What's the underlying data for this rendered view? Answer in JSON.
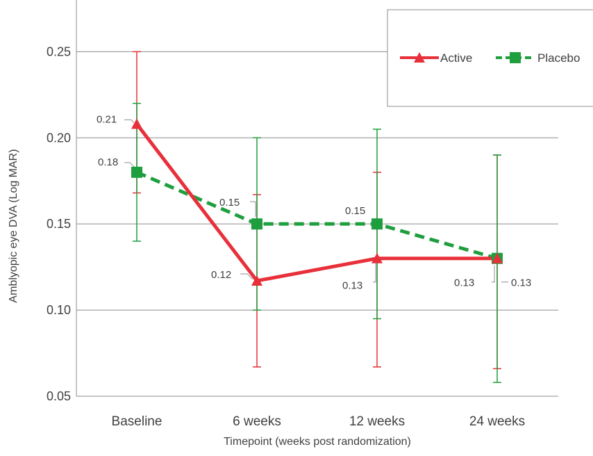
{
  "chart_data": {
    "type": "line",
    "title": "",
    "xlabel": "Timepoint (weeks post randomization)",
    "ylabel": "Amblyopic eye DVA (Log MAR)",
    "categories": [
      "Baseline",
      "6 weeks",
      "12 weeks",
      "24 weeks"
    ],
    "ylim": [
      0.05,
      0.28
    ],
    "yticks": [
      "0.05",
      "0.10",
      "0.15",
      "0.20",
      "0.25"
    ],
    "grid": "horizontal",
    "legend_position": "top-right",
    "series": [
      {
        "name": "Active",
        "color": "#e8303a",
        "marker": "triangle",
        "line_style": "solid",
        "values": [
          0.208,
          0.117,
          0.13,
          0.13
        ],
        "error_low": [
          0.168,
          0.067,
          0.067,
          0.066
        ],
        "error_high": [
          0.25,
          0.167,
          0.18,
          0.19
        ],
        "data_labels": [
          "0.21",
          "0.12",
          "0.13",
          "0.13"
        ]
      },
      {
        "name": "Placebo",
        "color": "#1f9e3e",
        "marker": "square",
        "line_style": "dashed",
        "values": [
          0.18,
          0.15,
          0.15,
          0.13
        ],
        "error_low": [
          0.14,
          0.1,
          0.095,
          0.058
        ],
        "error_high": [
          0.22,
          0.2,
          0.205,
          0.19
        ],
        "data_labels": [
          "0.18",
          "0.15",
          "0.15",
          "0.13"
        ]
      }
    ]
  }
}
